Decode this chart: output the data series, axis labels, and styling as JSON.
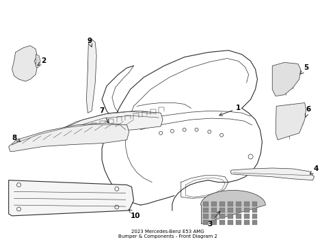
{
  "bg_color": "#ffffff",
  "line_color": "#2a2a2a",
  "label_color": "#000000",
  "title": "2023 Mercedes-Benz E53 AMG\nBumper & Components - Front Diagram 2"
}
